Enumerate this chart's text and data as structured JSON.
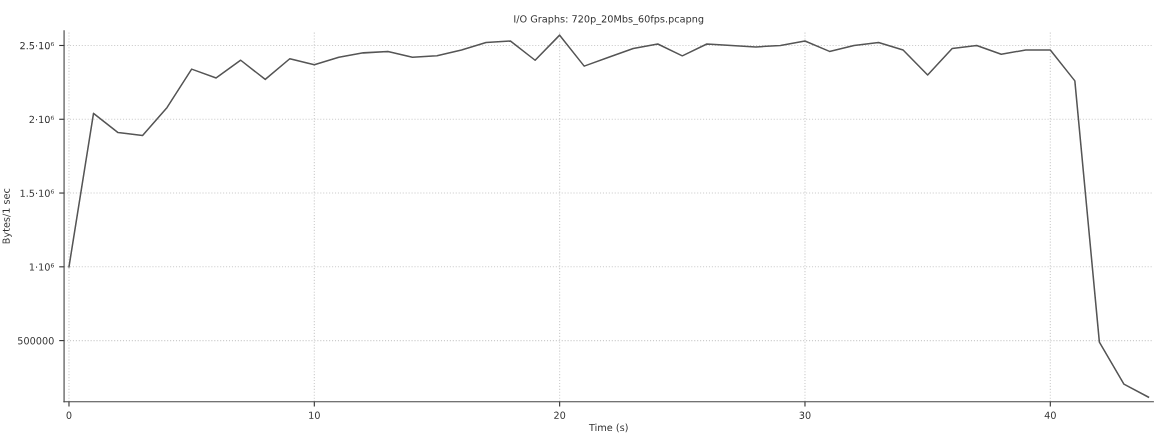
{
  "chart_data": {
    "type": "line",
    "title": "I/O Graphs: 720p_20Mbs_60fps.pcapng",
    "xlabel": "Time (s)",
    "ylabel": "Bytes/1 sec",
    "x": [
      0,
      1,
      2,
      3,
      4,
      5,
      6,
      7,
      8,
      9,
      10,
      11,
      12,
      13,
      14,
      15,
      16,
      17,
      18,
      19,
      20,
      21,
      22,
      23,
      24,
      25,
      26,
      27,
      28,
      29,
      30,
      31,
      32,
      33,
      34,
      35,
      36,
      37,
      38,
      39,
      40,
      41,
      42,
      43,
      44
    ],
    "series": [
      {
        "color": "#555555",
        "values": [
          1000000,
          2040000,
          1910000,
          1890000,
          2080000,
          2340000,
          2280000,
          2400000,
          2270000,
          2410000,
          2370000,
          2420000,
          2450000,
          2460000,
          2420000,
          2430000,
          2470000,
          2520000,
          2530000,
          2400000,
          2570000,
          2360000,
          2420000,
          2480000,
          2510000,
          2430000,
          2510000,
          2500000,
          2490000,
          2500000,
          2530000,
          2460000,
          2500000,
          2520000,
          2470000,
          2300000,
          2480000,
          2500000,
          2440000,
          2470000,
          2470000,
          2260000,
          490000,
          205000,
          117000
        ]
      }
    ],
    "xlim": [
      -0.2,
      44.2
    ],
    "ylim": [
      86000,
      2600000
    ],
    "xticks": [
      0,
      10,
      20,
      30,
      40
    ],
    "yticks": [
      {
        "value": 500000,
        "label": "500000"
      },
      {
        "value": 1000000,
        "label": "1·10⁶"
      },
      {
        "value": 1500000,
        "label": "1.5·10⁶"
      },
      {
        "value": 2000000,
        "label": "2·10⁶"
      },
      {
        "value": 2500000,
        "label": "2.5·10⁶"
      }
    ],
    "grid": true,
    "line_style": "solid"
  }
}
